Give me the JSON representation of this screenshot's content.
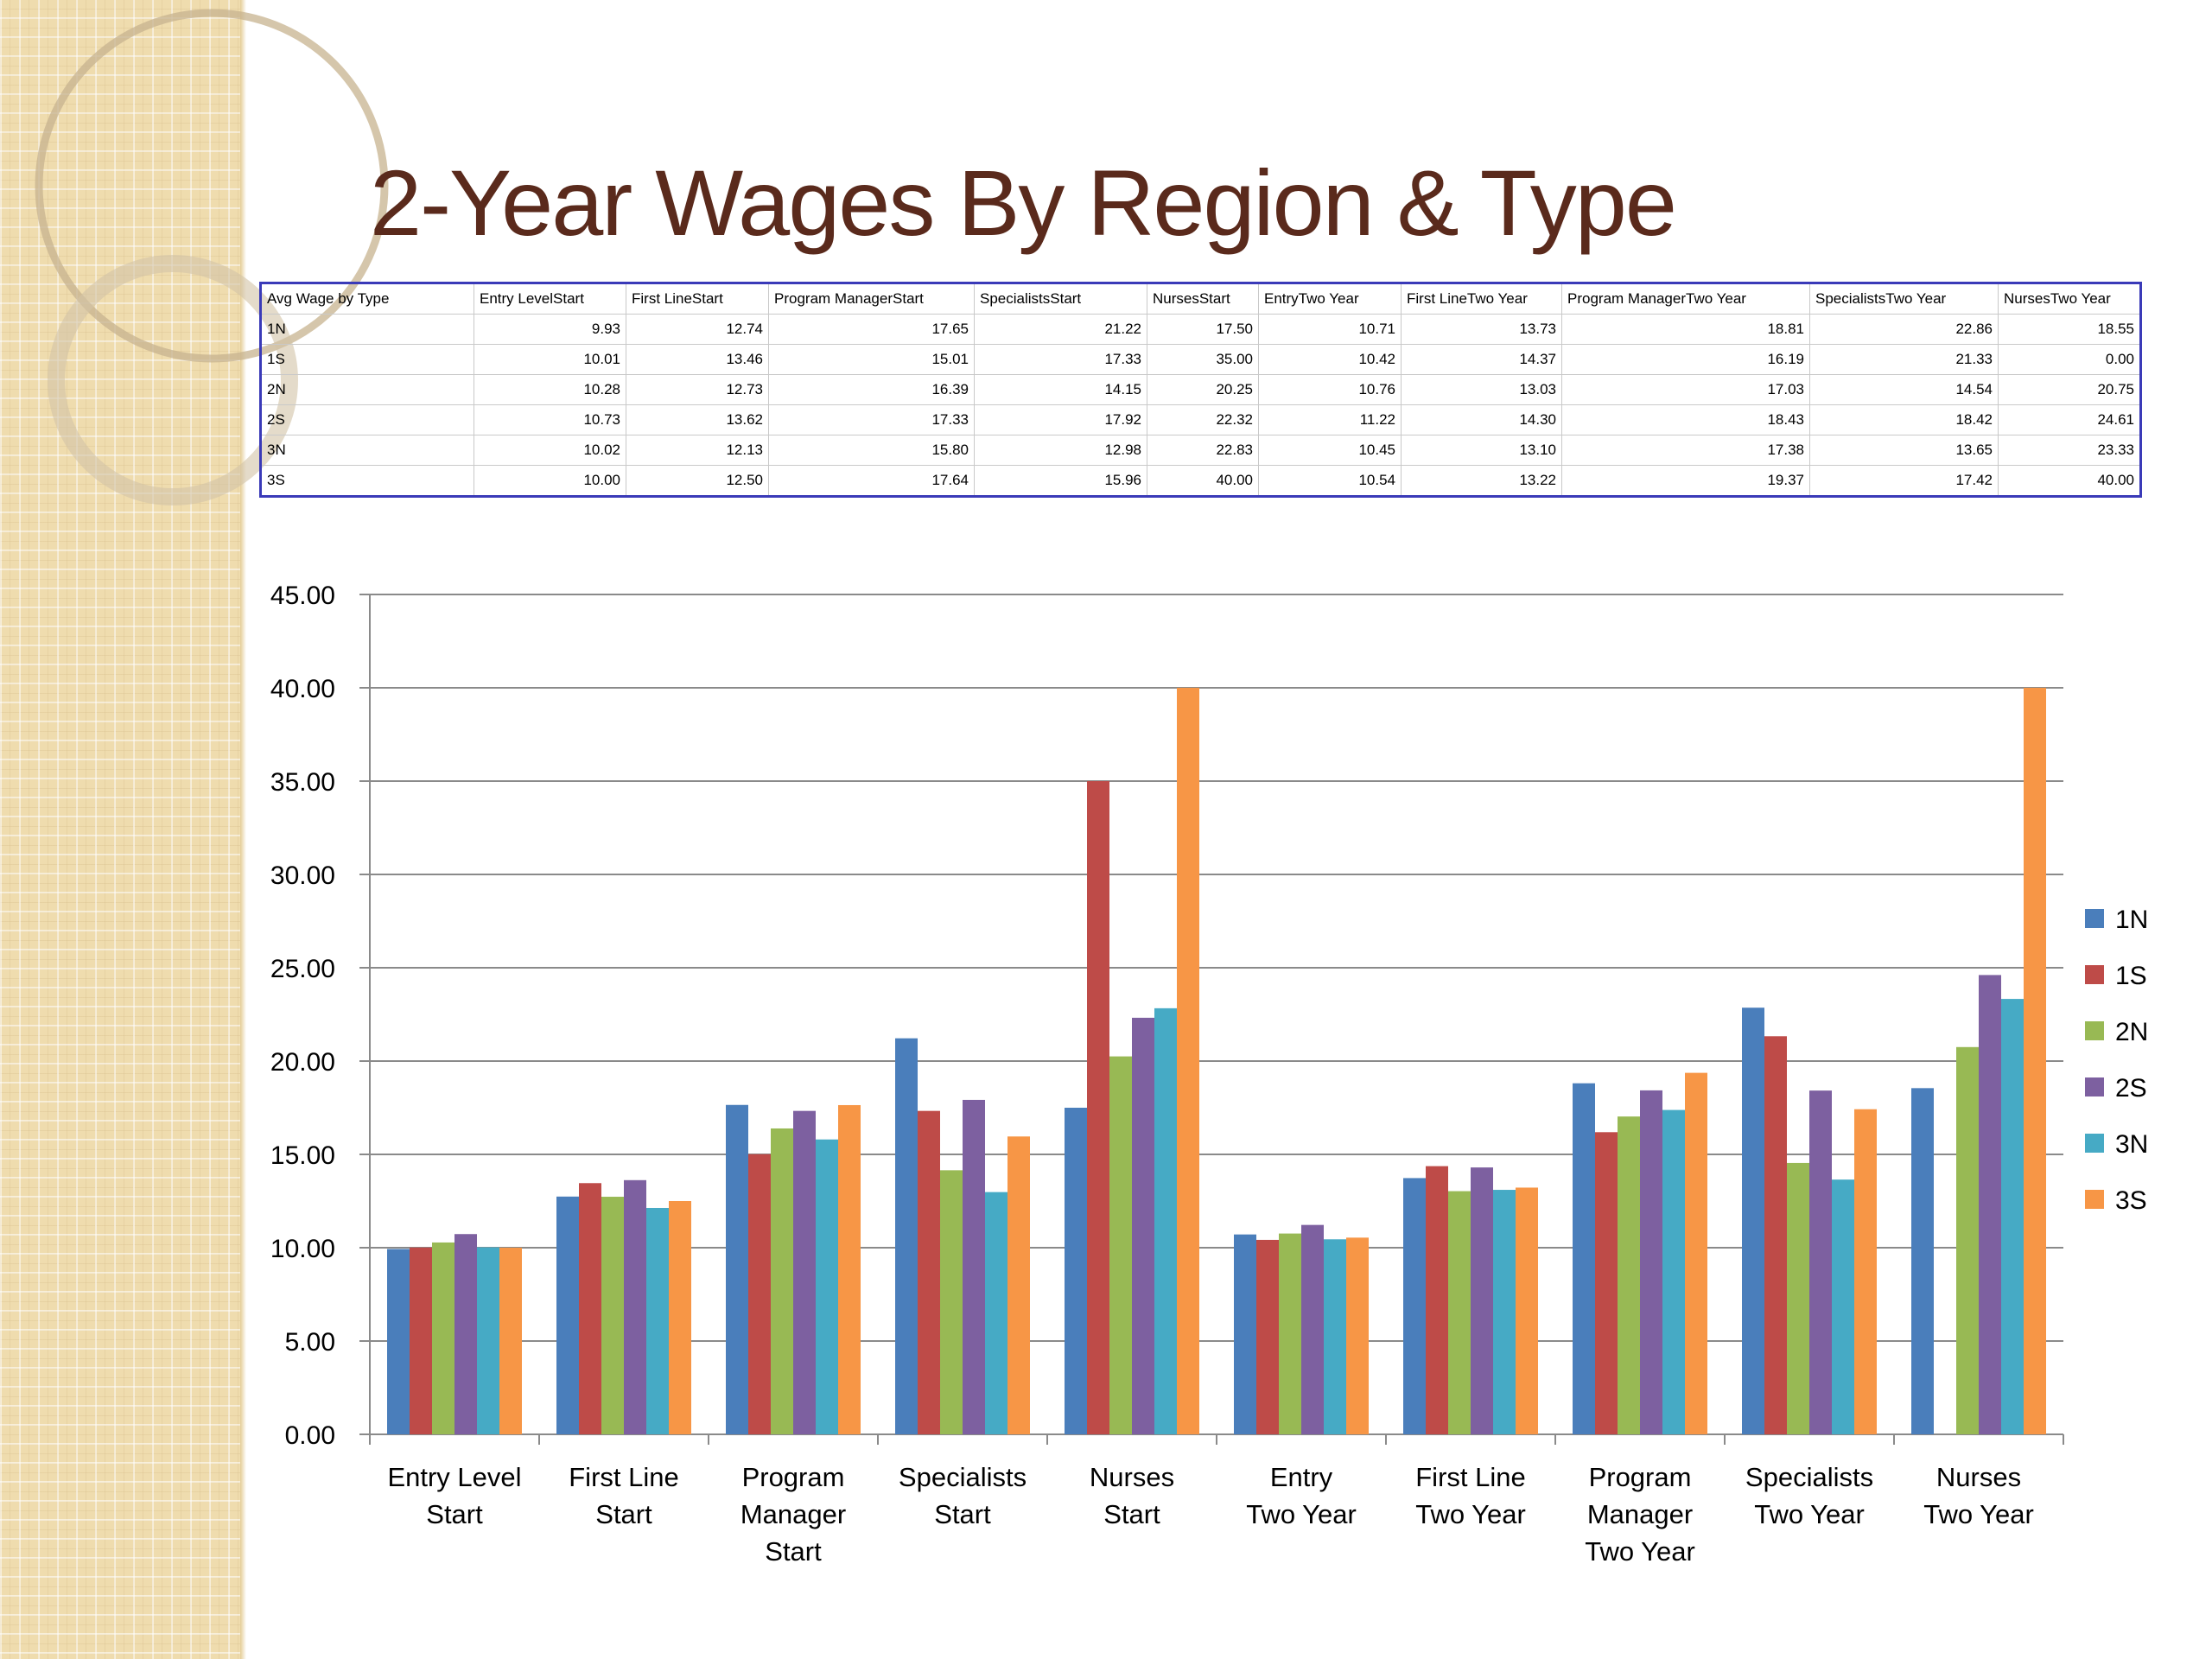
{
  "slide": {
    "title": "2-Year Wages By Region & Type"
  },
  "table": {
    "headers": [
      "Avg Wage by Type",
      "Entry LevelStart",
      "First LineStart",
      "Program ManagerStart",
      "SpecialistsStart",
      "NursesStart",
      "EntryTwo Year",
      "First LineTwo Year",
      "Program ManagerTwo Year",
      "SpecialistsTwo Year",
      "NursesTwo Year"
    ],
    "rows": [
      [
        "1N",
        "9.93",
        "12.74",
        "17.65",
        "21.22",
        "17.50",
        "10.71",
        "13.73",
        "18.81",
        "22.86",
        "18.55"
      ],
      [
        "1S",
        "10.01",
        "13.46",
        "15.01",
        "17.33",
        "35.00",
        "10.42",
        "14.37",
        "16.19",
        "21.33",
        "0.00"
      ],
      [
        "2N",
        "10.28",
        "12.73",
        "16.39",
        "14.15",
        "20.25",
        "10.76",
        "13.03",
        "17.03",
        "14.54",
        "20.75"
      ],
      [
        "2S",
        "10.73",
        "13.62",
        "17.33",
        "17.92",
        "22.32",
        "11.22",
        "14.30",
        "18.43",
        "18.42",
        "24.61"
      ],
      [
        "3N",
        "10.02",
        "12.13",
        "15.80",
        "12.98",
        "22.83",
        "10.45",
        "13.10",
        "17.38",
        "13.65",
        "23.33"
      ],
      [
        "3S",
        "10.00",
        "12.50",
        "17.64",
        "15.96",
        "40.00",
        "10.54",
        "13.22",
        "19.37",
        "17.42",
        "40.00"
      ]
    ]
  },
  "chart_data": {
    "type": "bar",
    "title": "",
    "xlabel": "",
    "ylabel": "",
    "ylim": [
      0,
      45
    ],
    "ytick_step": 5,
    "ytick_labels": [
      "0.00",
      "5.00",
      "10.00",
      "15.00",
      "20.00",
      "25.00",
      "30.00",
      "35.00",
      "40.00",
      "45.00"
    ],
    "grid": true,
    "legend_position": "right",
    "categories": [
      [
        "Entry Level",
        "Start"
      ],
      [
        "First Line",
        "Start"
      ],
      [
        "Program",
        "Manager",
        "Start"
      ],
      [
        "Specialists",
        "Start"
      ],
      [
        "Nurses",
        "Start"
      ],
      [
        "Entry",
        "Two Year"
      ],
      [
        "First Line",
        "Two Year"
      ],
      [
        "Program",
        "Manager",
        "Two Year"
      ],
      [
        "Specialists",
        "Two Year"
      ],
      [
        "Nurses",
        "Two Year"
      ]
    ],
    "series": [
      {
        "name": "1N",
        "color": "#4a7ebb",
        "values": [
          9.93,
          12.74,
          17.65,
          21.22,
          17.5,
          10.71,
          13.73,
          18.81,
          22.86,
          18.55
        ]
      },
      {
        "name": "1S",
        "color": "#be4b48",
        "values": [
          10.01,
          13.46,
          15.01,
          17.33,
          35.0,
          10.42,
          14.37,
          16.19,
          21.33,
          0.0
        ]
      },
      {
        "name": "2N",
        "color": "#98b954",
        "values": [
          10.28,
          12.73,
          16.39,
          14.15,
          20.25,
          10.76,
          13.03,
          17.03,
          14.54,
          20.75
        ]
      },
      {
        "name": "2S",
        "color": "#7d60a0",
        "values": [
          10.73,
          13.62,
          17.33,
          17.92,
          22.32,
          11.22,
          14.3,
          18.43,
          18.42,
          24.61
        ]
      },
      {
        "name": "3N",
        "color": "#46aac5",
        "values": [
          10.02,
          12.13,
          15.8,
          12.98,
          22.83,
          10.45,
          13.1,
          17.38,
          13.65,
          23.33
        ]
      },
      {
        "name": "3S",
        "color": "#f79646",
        "values": [
          10.0,
          12.5,
          17.64,
          15.96,
          40.0,
          10.54,
          13.22,
          19.37,
          17.42,
          40.0
        ]
      }
    ]
  }
}
